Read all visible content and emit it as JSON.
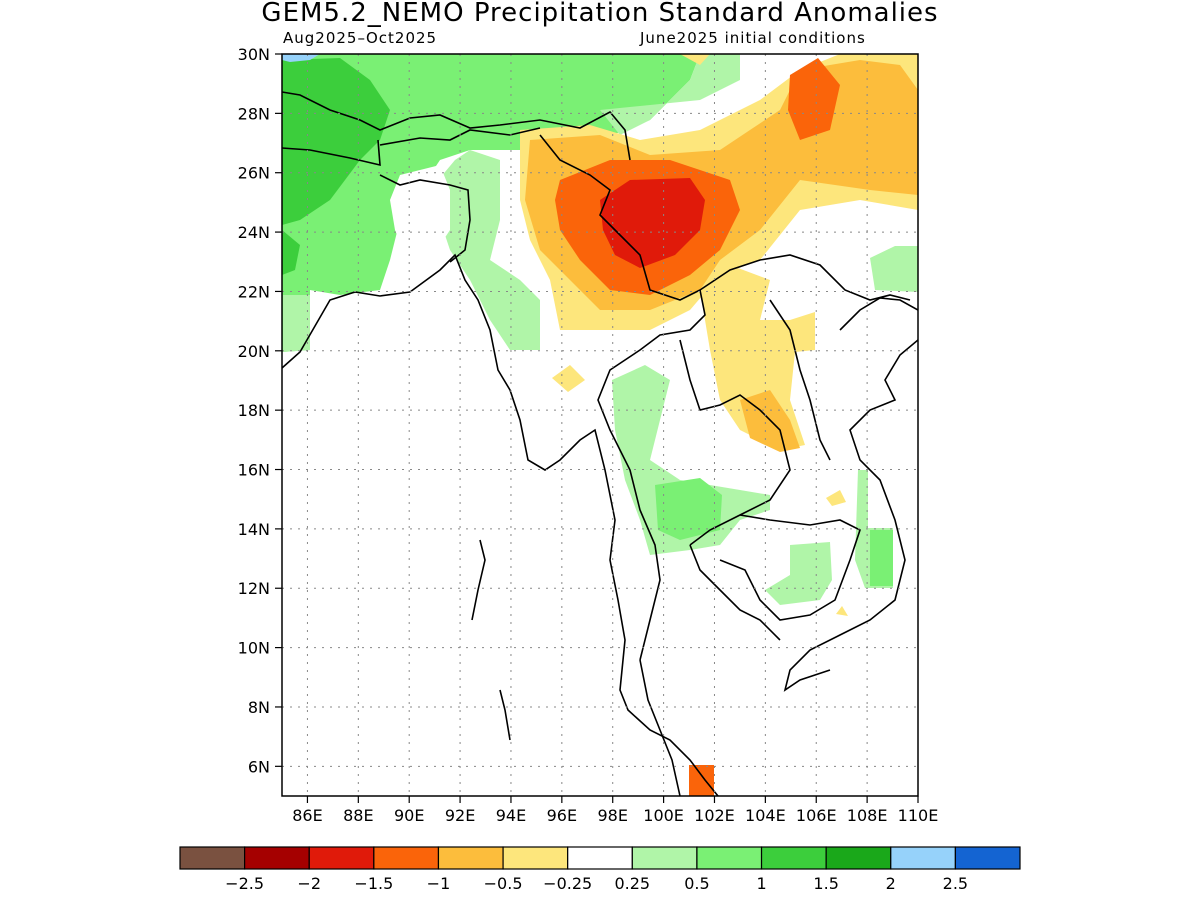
{
  "title": "GEM5.2_NEMO Precipitation Standard Anomalies",
  "period": "Aug2025–Oct2025",
  "initial_conditions": "June2025 initial conditions",
  "map": {
    "lon_range": [
      85,
      110
    ],
    "lat_range": [
      5,
      30
    ],
    "grid": true,
    "lat_labels": [
      "30N",
      "28N",
      "26N",
      "24N",
      "22N",
      "20N",
      "18N",
      "16N",
      "14N",
      "12N",
      "10N",
      "8N",
      "6N"
    ],
    "lon_labels": [
      "86E",
      "88E",
      "90E",
      "92E",
      "94E",
      "96E",
      "98E",
      "100E",
      "102E",
      "104E",
      "106E",
      "108E",
      "110E"
    ]
  },
  "colorbar": {
    "colors": [
      "#7a5140",
      "#a50000",
      "#e01a0a",
      "#fa640a",
      "#fcbd3c",
      "#fde67c",
      "#ffffff",
      "#b0f5a8",
      "#7af074",
      "#3cce3c",
      "#1aa81a",
      "#96d2fa",
      "#1464d2"
    ],
    "labels": [
      "−2.5",
      "−2",
      "−1.5",
      "−1",
      "−0.5",
      "−0.25",
      "0.25",
      "0.5",
      "1",
      "1.5",
      "2",
      "2.5"
    ]
  }
}
